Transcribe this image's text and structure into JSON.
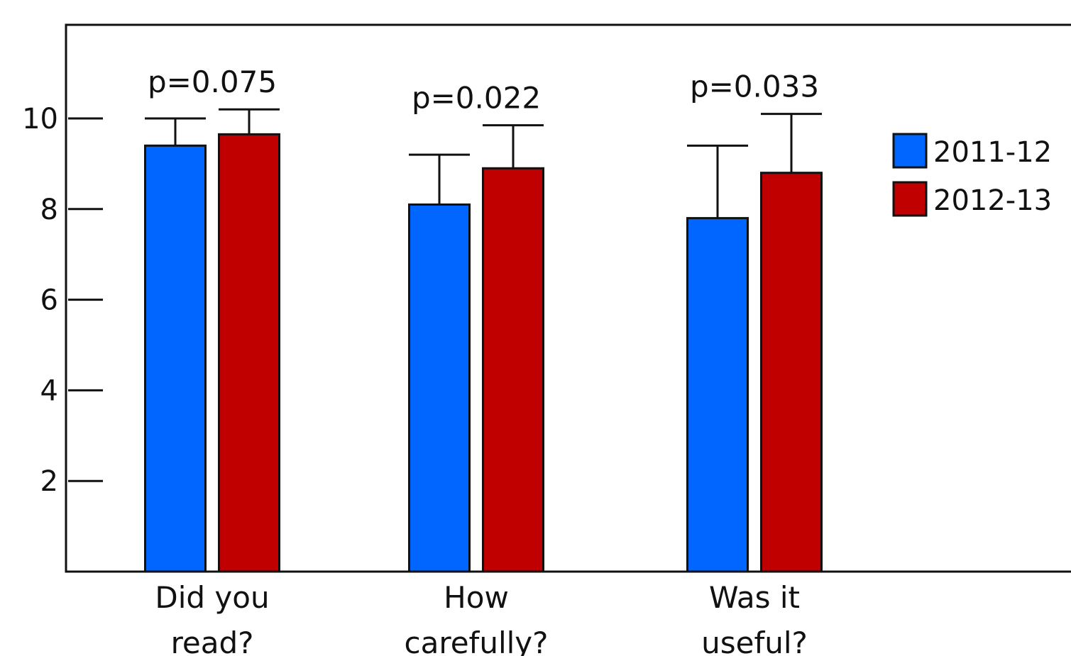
{
  "chart_data": {
    "type": "bar",
    "title": "",
    "xlabel": "",
    "ylabel": "",
    "ylim": [
      0,
      10.5
    ],
    "yticks": [
      "2",
      "4",
      "6",
      "8",
      "10"
    ],
    "grid": false,
    "legend_position": "right",
    "categories": [
      {
        "lines": [
          "Did you",
          "read?"
        ]
      },
      {
        "lines": [
          "How",
          "carefully?"
        ]
      },
      {
        "lines": [
          "Was it",
          "useful?"
        ]
      }
    ],
    "series": [
      {
        "name": "2011-12",
        "color": "#0066ff",
        "values": [
          9.4,
          8.1,
          7.8
        ],
        "errors": [
          0.6,
          1.1,
          1.6
        ]
      },
      {
        "name": "2012-13",
        "color": "#c00000",
        "values": [
          9.65,
          8.9,
          8.8
        ],
        "errors": [
          0.55,
          0.95,
          1.3
        ]
      }
    ],
    "annotations": [
      "p=0.075",
      "p=0.022",
      "p=0.033"
    ]
  }
}
